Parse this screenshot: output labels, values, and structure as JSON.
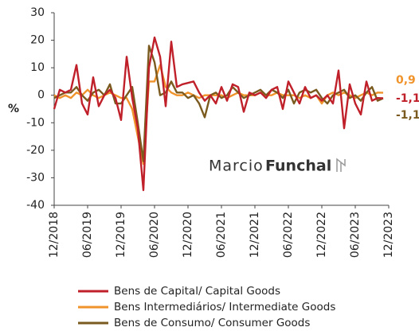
{
  "chart_data": {
    "type": "line",
    "y_label": "%",
    "watermark": {
      "light": "Marcio",
      "bold": "Funchal"
    },
    "categories": [
      "12/2018",
      null,
      null,
      null,
      null,
      null,
      "06/2019",
      null,
      null,
      null,
      null,
      null,
      "12/2019",
      null,
      null,
      null,
      null,
      null,
      "06/2020",
      null,
      null,
      null,
      null,
      null,
      "12/2020",
      null,
      null,
      null,
      null,
      null,
      "06/2021",
      null,
      null,
      null,
      null,
      null,
      "12/2021",
      null,
      null,
      null,
      null,
      null,
      "06/2022",
      null,
      null,
      null,
      null,
      null,
      "12/2022",
      null,
      null,
      null,
      null,
      null,
      "06/2023",
      null,
      null,
      null,
      null,
      null,
      "12/2023"
    ],
    "series": [
      {
        "name": "Bens de Capital/ Capital Goods",
        "color": "#c0202a",
        "end_label": "-1,1",
        "values": [
          -5,
          2,
          1,
          2,
          11,
          -3,
          -7,
          6.5,
          -4,
          0,
          2,
          -1,
          -9,
          14,
          -1,
          -12,
          -34.5,
          10,
          21,
          14,
          -4,
          19.5,
          3,
          4,
          4.5,
          5,
          1,
          -2,
          0,
          -3,
          3,
          -2,
          4,
          3,
          -6,
          1,
          0,
          1,
          -1,
          2,
          3,
          -5,
          5,
          1,
          -3,
          3,
          -1,
          0,
          -2,
          0,
          -3,
          9,
          -12,
          4,
          -3,
          -7,
          5,
          -2,
          -1,
          -1.1,
          null
        ]
      },
      {
        "name": "Bens Intermediários/ Intermediate Goods",
        "color": "#f0932b",
        "end_label": "0,9",
        "values": [
          0,
          -1,
          0,
          -1,
          1,
          0,
          2,
          0,
          -1,
          0,
          1,
          0,
          -1,
          -1,
          -5,
          -15,
          -25,
          5,
          5,
          11,
          3,
          1,
          0,
          0,
          1,
          0,
          -1,
          0,
          0,
          0,
          0,
          -1,
          0,
          1,
          0,
          0,
          0,
          1,
          0,
          0,
          1,
          0,
          0,
          0,
          -1,
          0,
          -1,
          0,
          -3,
          0,
          1,
          0,
          1,
          0,
          -1,
          0,
          1,
          0,
          1,
          0.9,
          null
        ]
      },
      {
        "name": "Bens de Consumo/ Consumer Goods",
        "color": "#7a5a1e",
        "end_label": "-1,1",
        "values": [
          -1,
          0,
          1,
          1,
          3,
          0,
          -2,
          1,
          2,
          0,
          4,
          -3,
          -3,
          0,
          3,
          -10,
          -24,
          18,
          12,
          0,
          1,
          5,
          1,
          1,
          -1,
          0,
          -3,
          -8,
          0,
          1,
          -1,
          0,
          3,
          1,
          -1,
          0,
          1,
          2,
          0,
          2,
          1,
          -1,
          2,
          -3,
          1,
          2,
          1,
          2,
          -1,
          -3,
          0,
          1,
          2,
          -1,
          0,
          -2,
          1,
          3,
          -2,
          -1.1,
          null
        ]
      }
    ],
    "ylim": [
      -40,
      30
    ],
    "yticks": [
      -40,
      -30,
      -20,
      -10,
      0,
      10,
      20,
      30
    ],
    "grid": false
  }
}
